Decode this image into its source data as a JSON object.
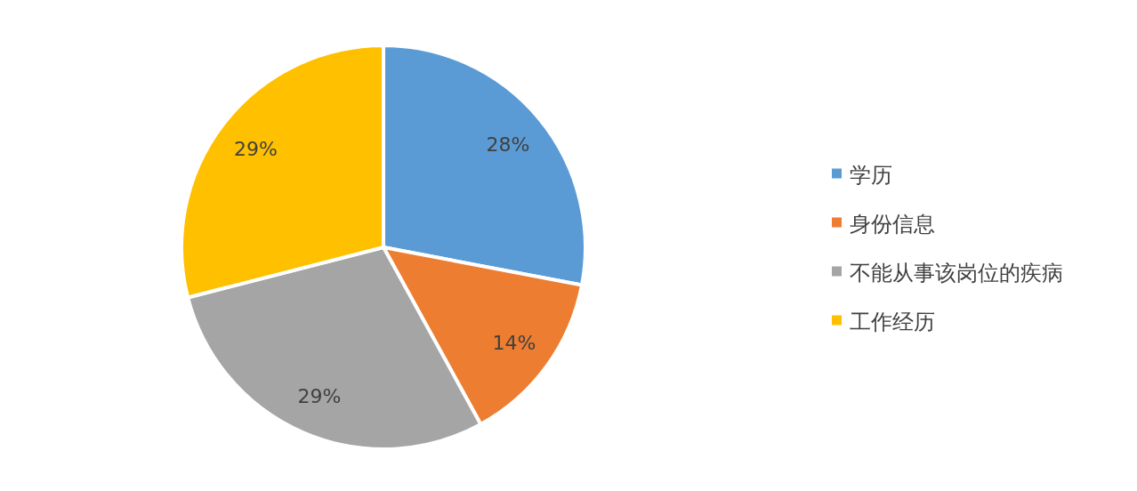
{
  "chart_data": {
    "type": "pie",
    "categories": [
      "学历",
      "身份信息",
      "不能从事该岗位的疾病",
      "工作经历"
    ],
    "values": [
      28,
      14,
      29,
      29
    ],
    "colors": [
      "#5b9bd5",
      "#ed7d31",
      "#a5a5a5",
      "#ffc000"
    ],
    "value_labels": [
      "28%",
      "14%",
      "29%",
      "29%"
    ],
    "legend": "right"
  }
}
